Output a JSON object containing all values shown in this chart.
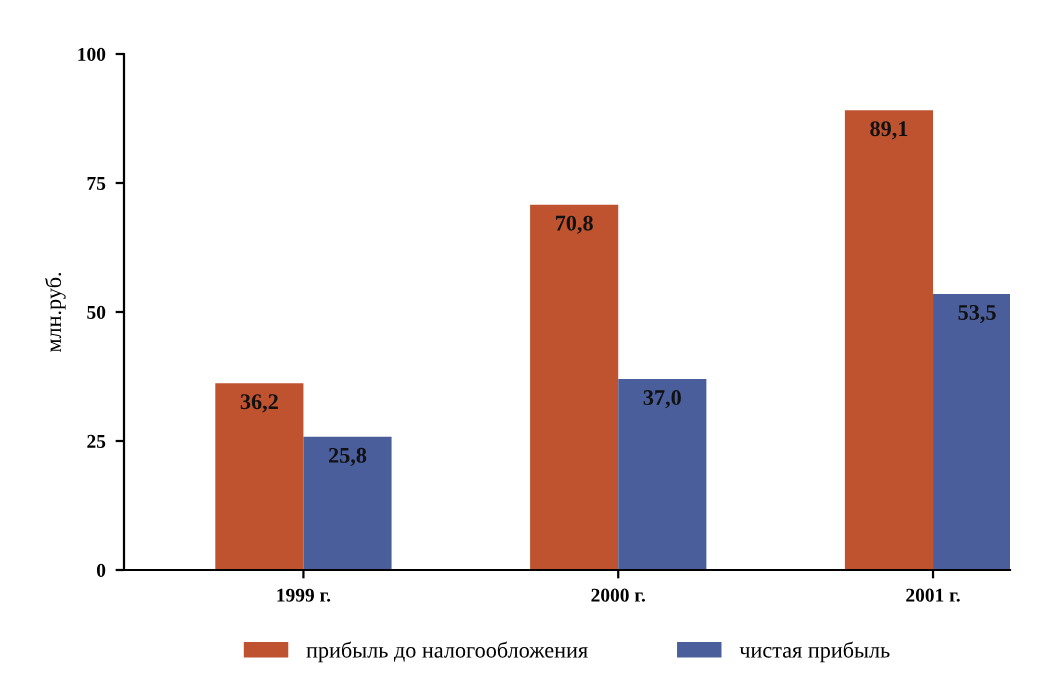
{
  "chart_data": {
    "type": "bar",
    "ylabel": "млн.руб.",
    "categories": [
      "1999 г.",
      "2000 г.",
      "2001 г."
    ],
    "series": [
      {
        "name": "прибыль до налогообложения",
        "color": "#c0532f",
        "values": [
          36.2,
          70.8,
          89.1
        ],
        "value_labels": [
          "36,2",
          "70,8",
          "89,1"
        ]
      },
      {
        "name": "чистая прибыль",
        "color": "#4a5e9c",
        "values": [
          25.8,
          37.0,
          53.5
        ],
        "value_labels": [
          "25,8",
          "37,0",
          "53,5"
        ]
      }
    ],
    "ylim": [
      0,
      100
    ],
    "yticks": [
      0,
      25,
      50,
      75,
      100
    ],
    "grid": false,
    "legend": "bottom"
  }
}
